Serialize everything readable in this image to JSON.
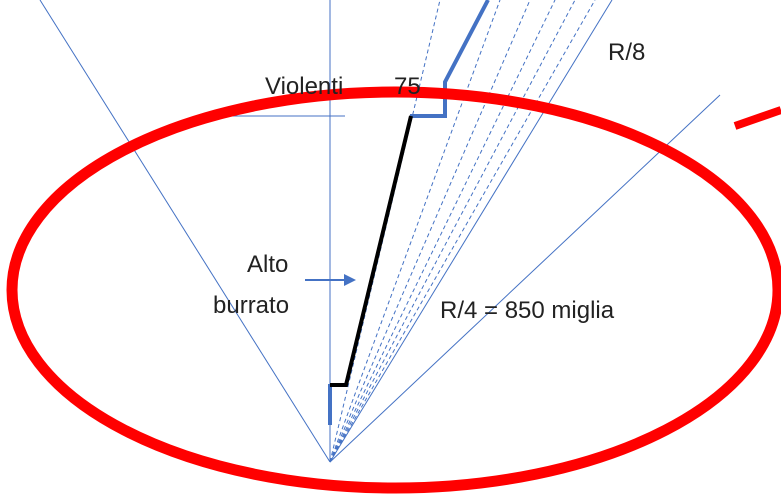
{
  "labels": {
    "violenti": "Violenti",
    "number": "75",
    "r8": "R/8",
    "alto": "Alto",
    "burrato": "burrato",
    "r4": "R/4 = 850 miglia"
  }
}
